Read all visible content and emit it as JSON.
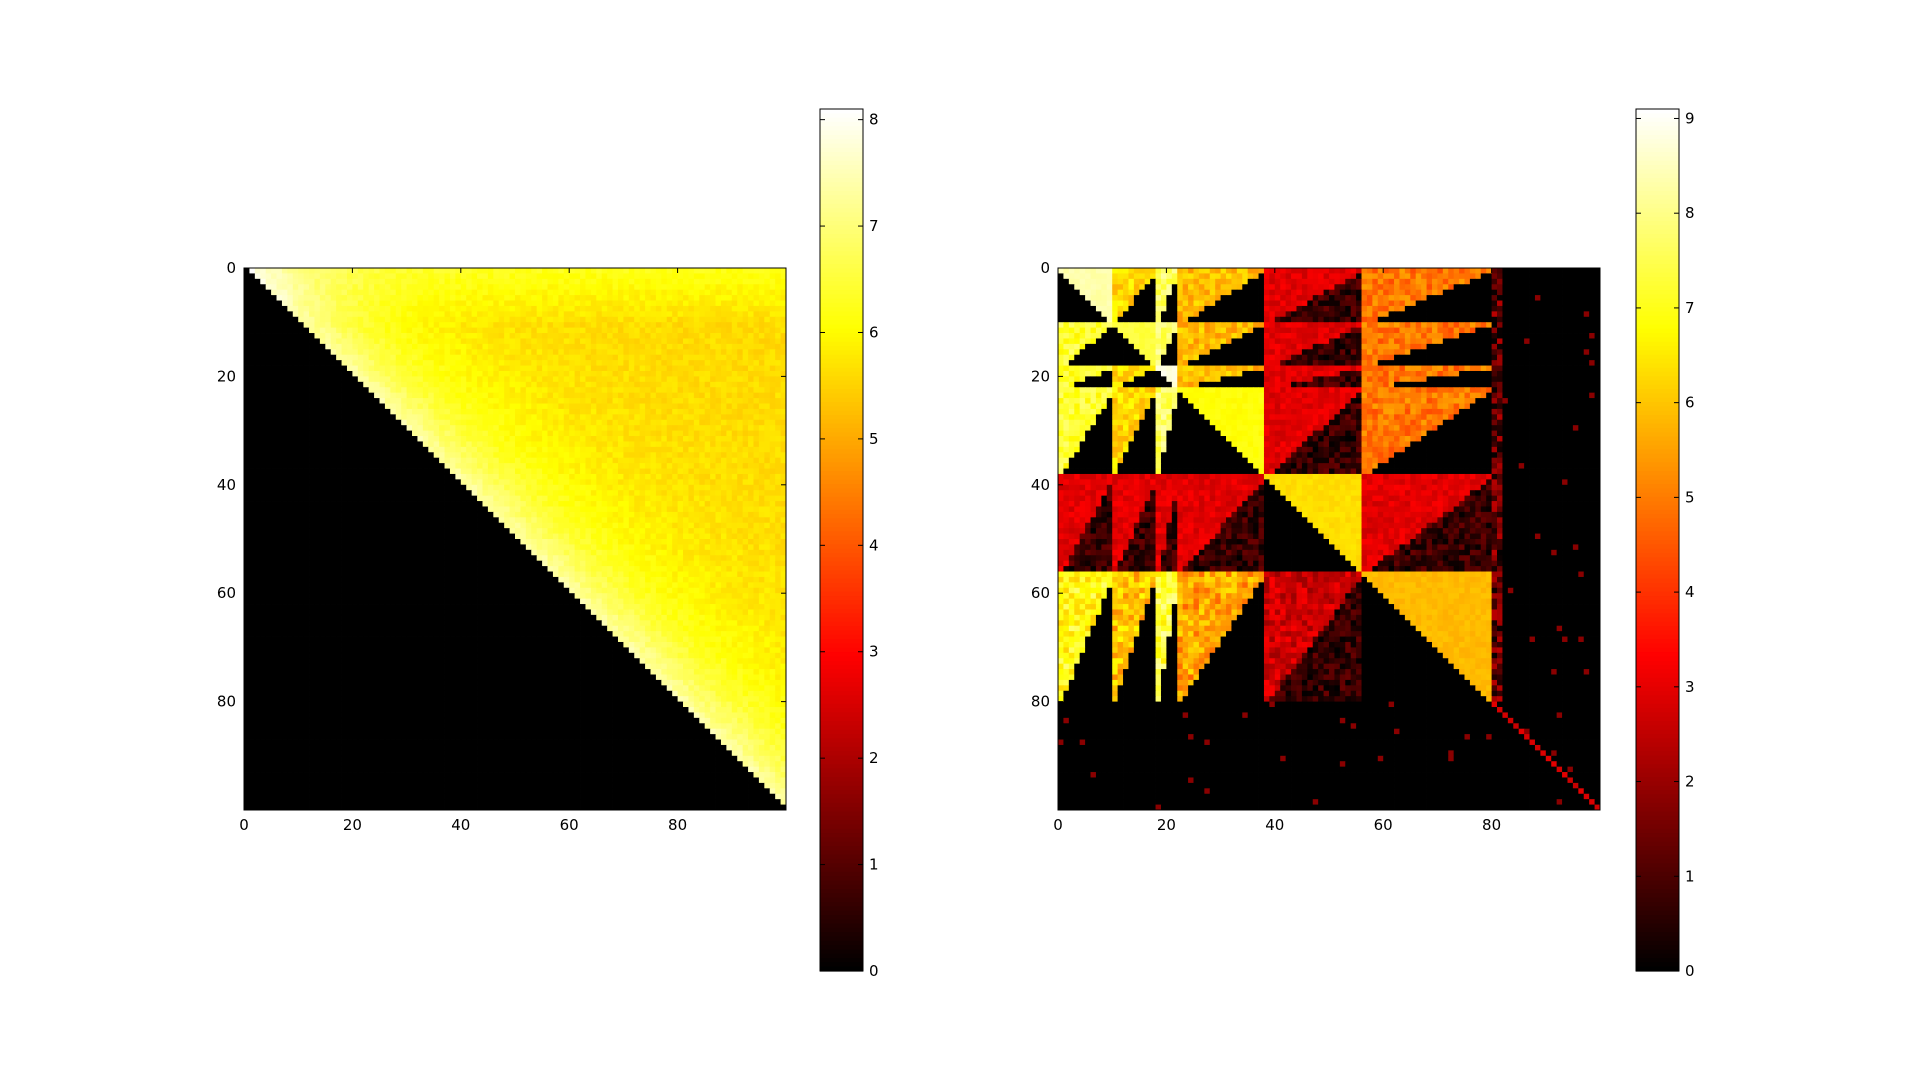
{
  "chart_data": [
    {
      "type": "heatmap",
      "title": "",
      "xlabel": "",
      "ylabel": "",
      "grid_size": 100,
      "colormap": "hot",
      "x_ticks": [
        "0",
        "20",
        "40",
        "60",
        "80"
      ],
      "y_ticks": [
        "0",
        "20",
        "40",
        "60",
        "80"
      ],
      "xlim": [
        0,
        100
      ],
      "ylim": [
        100,
        0
      ],
      "colorbar": {
        "min": 0,
        "max": 8.1,
        "ticks": [
          "0",
          "1",
          "2",
          "3",
          "4",
          "5",
          "6",
          "7",
          "8"
        ]
      },
      "pattern": "upper-triangle",
      "description_values": {
        "lower_triangle_value": 0,
        "near_diagonal_value": 7.5,
        "far_from_diagonal_value": 5.6
      }
    },
    {
      "type": "heatmap",
      "title": "",
      "xlabel": "",
      "ylabel": "",
      "grid_size": 100,
      "colormap": "hot",
      "x_ticks": [
        "0",
        "20",
        "40",
        "60",
        "80"
      ],
      "y_ticks": [
        "0",
        "20",
        "40",
        "60",
        "80"
      ],
      "xlim": [
        0,
        100
      ],
      "ylim": [
        100,
        0
      ],
      "colorbar": {
        "min": 0,
        "max": 9.1,
        "ticks": [
          "0",
          "1",
          "2",
          "3",
          "4",
          "5",
          "6",
          "7",
          "8",
          "9"
        ]
      },
      "pattern": "block-structured",
      "blocks": [
        {
          "start": 0,
          "end": 10,
          "level": 8.5
        },
        {
          "start": 10,
          "end": 18,
          "level": 7.5
        },
        {
          "start": 18,
          "end": 22,
          "level": 9.0
        },
        {
          "start": 22,
          "end": 38,
          "level": 7.0
        },
        {
          "start": 38,
          "end": 56,
          "level": 6.5
        },
        {
          "start": 56,
          "end": 80,
          "level": 6.0
        }
      ],
      "tail_start": 80,
      "tail_diagonal_value": 2.5
    }
  ]
}
